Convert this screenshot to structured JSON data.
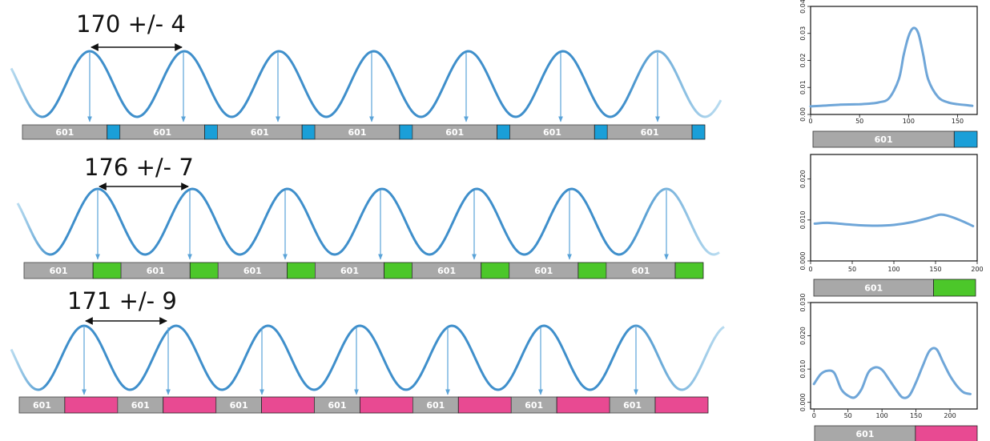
{
  "colors": {
    "wave": "#3f8fcb",
    "wave_light": "#b9dcf0",
    "arrow": "#5aa3d8",
    "nucleosome": "#a8a8a8",
    "linker_1": "#1a9fd8",
    "linker_2": "#4cc72a",
    "linker_3": "#e84a92",
    "profile_line": "#6fa6d8"
  },
  "nucleosome_label": "601",
  "rows": [
    {
      "label": "170 +/- 4",
      "linker_color_key": "linker_1",
      "nucleosome_labels": [
        "601",
        "601",
        "601",
        "601",
        "601",
        "601",
        "601"
      ]
    },
    {
      "label": "176 +/- 7",
      "linker_color_key": "linker_2",
      "nucleosome_labels": [
        "601",
        "601",
        "601",
        "601",
        "601",
        "601",
        "601"
      ]
    },
    {
      "label": "171 +/- 9",
      "linker_color_key": "linker_3",
      "nucleosome_labels": [
        "601",
        "601",
        "601",
        "601",
        "601",
        "601",
        "601"
      ]
    }
  ],
  "chart_data": [
    {
      "type": "line",
      "x": [
        0,
        10,
        20,
        30,
        40,
        50,
        60,
        70,
        80,
        90,
        95,
        100,
        105,
        110,
        115,
        120,
        130,
        140,
        150,
        160,
        165
      ],
      "y": [
        0.003,
        0.0032,
        0.0034,
        0.0036,
        0.0037,
        0.0038,
        0.004,
        0.0045,
        0.006,
        0.013,
        0.022,
        0.029,
        0.032,
        0.03,
        0.022,
        0.013,
        0.0065,
        0.0045,
        0.0038,
        0.0034,
        0.0032
      ],
      "xlim": [
        0,
        170
      ],
      "ylim": [
        0,
        0.04
      ],
      "xticks": [
        "0",
        "50",
        "100",
        "150"
      ],
      "yticks": [
        "0.00",
        "0.01",
        "0.02",
        "0.03",
        "0.04"
      ],
      "ytick_values": [
        0,
        0.01,
        0.02,
        0.03,
        0.04
      ],
      "xtick_values": [
        0,
        50,
        100,
        150
      ],
      "grid": false
    },
    {
      "type": "line",
      "x": [
        5,
        20,
        40,
        60,
        80,
        100,
        120,
        140,
        155,
        165,
        180,
        195
      ],
      "y": [
        0.0091,
        0.0093,
        0.009,
        0.0087,
        0.0086,
        0.0088,
        0.0094,
        0.0104,
        0.0113,
        0.011,
        0.0099,
        0.0085
      ],
      "xlim": [
        0,
        200
      ],
      "ylim": [
        0,
        0.026
      ],
      "xticks": [
        "0",
        "50",
        "100",
        "150",
        "200"
      ],
      "yticks": [
        "0.000",
        "0.010",
        "0.020"
      ],
      "ytick_values": [
        0,
        0.01,
        0.02
      ],
      "xtick_values": [
        0,
        50,
        100,
        150,
        200
      ],
      "grid": false
    },
    {
      "type": "line",
      "x": [
        0,
        10,
        20,
        30,
        40,
        50,
        60,
        70,
        80,
        90,
        100,
        110,
        120,
        130,
        140,
        150,
        160,
        170,
        180,
        190,
        200,
        210,
        220,
        230
      ],
      "y": [
        0.0055,
        0.0085,
        0.0095,
        0.0088,
        0.004,
        0.002,
        0.0015,
        0.004,
        0.009,
        0.0105,
        0.0098,
        0.007,
        0.004,
        0.0015,
        0.002,
        0.006,
        0.011,
        0.0155,
        0.016,
        0.012,
        0.008,
        0.005,
        0.003,
        0.0025
      ],
      "xlim": [
        -5,
        240
      ],
      "ylim": [
        -0.002,
        0.03
      ],
      "xticks": [
        "0",
        "50",
        "100",
        "150",
        "200"
      ],
      "yticks": [
        "0.000",
        "0.010",
        "0.020",
        "0.030"
      ],
      "ytick_values": [
        0,
        0.01,
        0.02,
        0.03
      ],
      "xtick_values": [
        0,
        50,
        100,
        150,
        200
      ],
      "grid": false
    }
  ]
}
